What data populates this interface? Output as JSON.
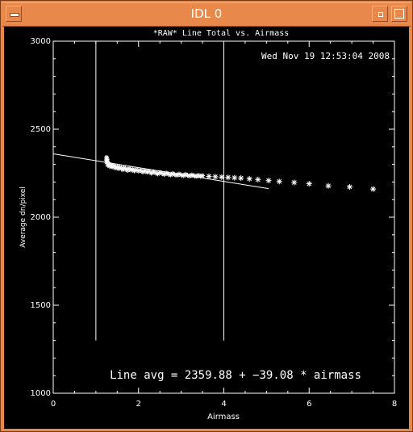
{
  "window": {
    "title": "IDL 0",
    "menu_icon": "window-menu-icon",
    "minimize_icon": "minimize-icon",
    "maximize_icon": "maximize-icon"
  },
  "colors": {
    "frame": "#e8884a",
    "plot_background": "#000000",
    "ink": "#ffffff"
  },
  "chart_data": {
    "type": "scatter",
    "title": "*RAW* Line Total vs. Airmass",
    "timestamp": "Wed Nov 19 12:53:04 2008",
    "xlabel": "Airmass",
    "ylabel": "Average dn/pixel",
    "xlim": [
      0,
      8
    ],
    "ylim": [
      1000,
      3000
    ],
    "x_ticks": [
      0,
      2,
      4,
      6,
      8
    ],
    "y_ticks": [
      1000,
      1500,
      2000,
      2500,
      3000
    ],
    "x_tick_labels": [
      "0",
      "2",
      "4",
      "6",
      "8"
    ],
    "y_tick_labels": [
      "1000",
      "1500",
      "2000",
      "2500",
      "3000"
    ],
    "grid": false,
    "vertical_markers": [
      1.0,
      4.0
    ],
    "fit_line": {
      "intercept": 2359.88,
      "slope": -39.08,
      "x_range": [
        0,
        5.05
      ]
    },
    "fit_label": "Line avg = 2359.88 + −39.08 * airmass",
    "dense_points": {
      "x": [
        1.25,
        1.25,
        1.25,
        1.26,
        1.27,
        1.28,
        1.28,
        1.3,
        1.32,
        1.34,
        1.36,
        1.38,
        1.4,
        1.43,
        1.46,
        1.5,
        1.53,
        1.56,
        1.6,
        1.63,
        1.66,
        1.7,
        1.74,
        1.78,
        1.82,
        1.86,
        1.9,
        1.95,
        2.0,
        2.05,
        2.1,
        2.15,
        2.2,
        2.25,
        2.3,
        2.35,
        2.4,
        2.45,
        2.5,
        2.55,
        2.6,
        2.65,
        2.7,
        2.75,
        2.8,
        2.85,
        2.9,
        2.95,
        3.0,
        3.05,
        3.1,
        3.15,
        3.2,
        3.25,
        3.3,
        3.35,
        3.4,
        3.45,
        3.5
      ],
      "y": [
        2340,
        2325,
        2312,
        2330,
        2318,
        2305,
        2296,
        2302,
        2290,
        2298,
        2287,
        2294,
        2285,
        2292,
        2280,
        2288,
        2276,
        2284,
        2278,
        2270,
        2281,
        2274,
        2266,
        2277,
        2268,
        2272,
        2263,
        2270,
        2262,
        2266,
        2257,
        2264,
        2256,
        2261,
        2250,
        2258,
        2252,
        2246,
        2255,
        2249,
        2243,
        2251,
        2245,
        2240,
        2248,
        2242,
        2238,
        2245,
        2240,
        2236,
        2243,
        2238,
        2234,
        2240,
        2236,
        2232,
        2238,
        2233,
        2236
      ]
    },
    "star_points": {
      "x": [
        3.65,
        3.8,
        3.95,
        4.1,
        4.25,
        4.4,
        4.6,
        4.8,
        5.05,
        5.3,
        5.65,
        6.0,
        6.45,
        6.95,
        7.5
      ],
      "y": [
        2232,
        2230,
        2228,
        2226,
        2224,
        2222,
        2218,
        2214,
        2208,
        2203,
        2197,
        2190,
        2178,
        2172,
        2160
      ]
    }
  }
}
